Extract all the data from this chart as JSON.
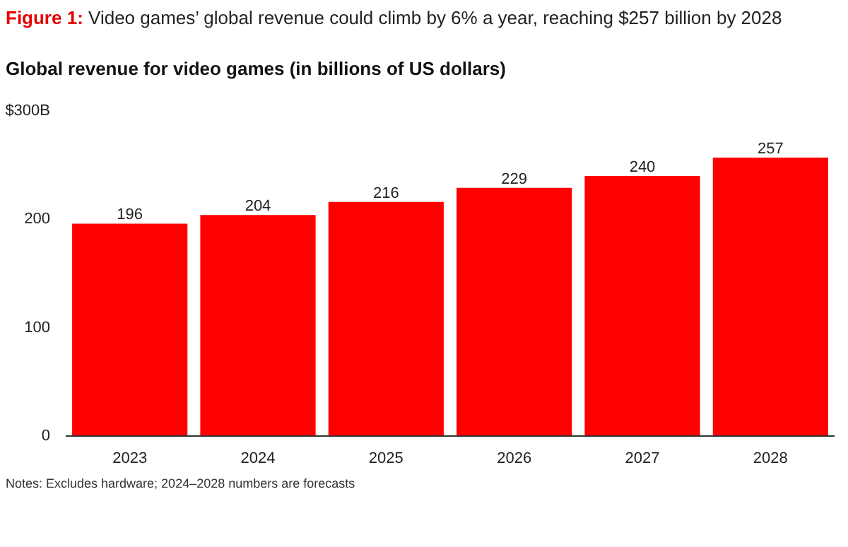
{
  "chart_data": {
    "type": "bar",
    "title": "Figure 1: Video games’ global revenue could climb by 6% a year, reaching $257 billion by 2028",
    "subtitle": "Global revenue for video games (in billions of US dollars)",
    "categories": [
      "2023",
      "2024",
      "2025",
      "2026",
      "2027",
      "2028"
    ],
    "values": [
      196,
      204,
      216,
      229,
      240,
      257
    ],
    "color": "#ff0000",
    "data_labels": true,
    "grid": false,
    "ylim": [
      0,
      300
    ],
    "yticks": [
      0,
      100,
      200,
      {
        "value": 300,
        "label": "$300B"
      }
    ],
    "annotations": [
      "Notes: Excludes hardware; 2024–2028 numbers are forecasts"
    ]
  }
}
